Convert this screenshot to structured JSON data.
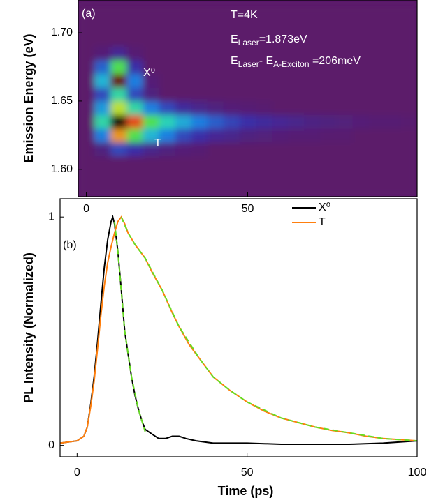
{
  "chart_data": [
    {
      "type": "heatmap",
      "ylabel": "Emission Energy (eV)",
      "xlim": [
        -2.5,
        102.5
      ],
      "xticks": [
        0,
        50
      ],
      "ylim": [
        1.58,
        1.724
      ],
      "yticks": [
        {
          "value": 1.6,
          "label": "1.60"
        },
        {
          "value": 1.65,
          "label": "1.65"
        },
        {
          "value": 1.7,
          "label": "1.70"
        }
      ],
      "x": [
        0,
        5,
        10,
        15,
        20,
        25,
        30,
        35,
        40,
        45,
        50,
        55,
        60,
        65,
        70,
        75,
        80,
        85,
        90,
        95,
        100
      ],
      "y": [
        1.585,
        1.595,
        1.605,
        1.615,
        1.625,
        1.635,
        1.645,
        1.655,
        1.665,
        1.675,
        1.685,
        1.695,
        1.705,
        1.715
      ],
      "z": [
        [
          0,
          0,
          0,
          0,
          0,
          0,
          0,
          0,
          0,
          0,
          0,
          0,
          0,
          0,
          0,
          0,
          0,
          0,
          0,
          0,
          0
        ],
        [
          0,
          0,
          0,
          0,
          0,
          0,
          0,
          0,
          0,
          0,
          0,
          0,
          0,
          0,
          0,
          0,
          0,
          0,
          0,
          0,
          0
        ],
        [
          0,
          0,
          0,
          0,
          0,
          0,
          0,
          0,
          0,
          0,
          0,
          0,
          0,
          0,
          0,
          0,
          0,
          0,
          0,
          0,
          0
        ],
        [
          0,
          0.05,
          0.2,
          0.15,
          0.08,
          0.05,
          0.03,
          0.02,
          0,
          0,
          0,
          0,
          0,
          0,
          0,
          0,
          0,
          0,
          0,
          0,
          0
        ],
        [
          0,
          0.3,
          0.8,
          0.6,
          0.4,
          0.3,
          0.2,
          0.15,
          0.1,
          0.08,
          0.05,
          0.04,
          0.03,
          0.02,
          0.02,
          0.01,
          0.01,
          0,
          0,
          0,
          0
        ],
        [
          0,
          0.5,
          1,
          0.85,
          0.6,
          0.48,
          0.38,
          0.3,
          0.24,
          0.19,
          0.15,
          0.12,
          0.1,
          0.08,
          0.06,
          0.05,
          0.04,
          0.03,
          0.02,
          0.02,
          0.01
        ],
        [
          0,
          0.35,
          0.7,
          0.5,
          0.3,
          0.2,
          0.12,
          0.08,
          0.05,
          0.03,
          0.02,
          0.01,
          0,
          0,
          0,
          0,
          0,
          0,
          0,
          0,
          0
        ],
        [
          0,
          0.2,
          0.5,
          0.2,
          0.05,
          0,
          0,
          0,
          0,
          0,
          0,
          0,
          0,
          0,
          0,
          0,
          0,
          0,
          0,
          0,
          0
        ],
        [
          0,
          0.4,
          0.95,
          0.3,
          0.03,
          0,
          0,
          0,
          0,
          0,
          0,
          0,
          0,
          0,
          0,
          0,
          0,
          0,
          0,
          0,
          0
        ],
        [
          0,
          0.25,
          0.6,
          0.15,
          0,
          0,
          0,
          0,
          0,
          0,
          0,
          0,
          0,
          0,
          0,
          0,
          0,
          0,
          0,
          0,
          0
        ],
        [
          0,
          0.03,
          0.1,
          0.02,
          0,
          0,
          0,
          0,
          0,
          0,
          0,
          0,
          0,
          0,
          0,
          0,
          0,
          0,
          0,
          0,
          0
        ],
        [
          0,
          0,
          0,
          0,
          0,
          0,
          0,
          0,
          0,
          0,
          0,
          0,
          0,
          0,
          0,
          0,
          0,
          0,
          0,
          0,
          0
        ],
        [
          0,
          0,
          0,
          0,
          0,
          0,
          0,
          0,
          0,
          0,
          0,
          0,
          0,
          0,
          0,
          0,
          0,
          0,
          0,
          0,
          0
        ],
        [
          0,
          0,
          0,
          0,
          0,
          0,
          0,
          0,
          0,
          0,
          0,
          0,
          0,
          0,
          0,
          0,
          0,
          0,
          0,
          0,
          0
        ]
      ],
      "annotations": {
        "panel": "(a)",
        "temperature": "T=4K",
        "laser": [
          "E",
          "Laser",
          "=1.873eV"
        ],
        "detuning": [
          "E",
          "Laser",
          "- E",
          "A-Exciton",
          " =206meV"
        ],
        "exciton": "X⁰",
        "trion": "T"
      }
    },
    {
      "type": "line",
      "xlabel": "Time (ps)",
      "ylabel": "PL Intensity (Normalized)",
      "xlim": [
        -5,
        100
      ],
      "xticks": [
        0,
        50,
        100
      ],
      "ylim": [
        -0.05,
        1.08
      ],
      "yticks": [
        0,
        1
      ],
      "legend": "top-right",
      "annotations": {
        "panel": "(b)"
      },
      "series": [
        {
          "name": "X⁰",
          "color": "#000000",
          "x": [
            -5,
            0,
            2,
            3,
            4,
            5,
            6,
            7,
            8,
            9,
            10,
            10.5,
            11,
            12,
            13,
            14,
            15,
            16,
            17,
            18,
            19,
            20,
            22,
            24,
            26,
            28,
            30,
            32,
            35,
            40,
            50,
            60,
            70,
            80,
            90,
            100
          ],
          "values": [
            0.01,
            0.02,
            0.04,
            0.08,
            0.18,
            0.3,
            0.45,
            0.62,
            0.78,
            0.9,
            0.98,
            1,
            0.97,
            0.85,
            0.68,
            0.5,
            0.4,
            0.3,
            0.22,
            0.16,
            0.11,
            0.07,
            0.05,
            0.03,
            0.03,
            0.04,
            0.04,
            0.03,
            0.02,
            0.01,
            0.01,
            0.005,
            0.005,
            0.005,
            0.01,
            0.02
          ]
        },
        {
          "name": "T",
          "color": "#ff7f0e",
          "x": [
            -5,
            0,
            2,
            3,
            4,
            5,
            6,
            7,
            8,
            9,
            10,
            11,
            12,
            13,
            14,
            15,
            17,
            20,
            22,
            25,
            28,
            30,
            33,
            36,
            40,
            45,
            50,
            55,
            60,
            65,
            70,
            75,
            80,
            85,
            90,
            95,
            100
          ],
          "values": [
            0.01,
            0.02,
            0.04,
            0.08,
            0.17,
            0.28,
            0.42,
            0.57,
            0.7,
            0.8,
            0.87,
            0.93,
            0.98,
            1,
            0.97,
            0.93,
            0.88,
            0.82,
            0.76,
            0.68,
            0.58,
            0.52,
            0.44,
            0.38,
            0.3,
            0.24,
            0.19,
            0.15,
            0.12,
            0.1,
            0.08,
            0.065,
            0.055,
            0.04,
            0.03,
            0.025,
            0.02
          ]
        }
      ],
      "fits": [
        {
          "color": "#66dd22",
          "x": [
            11,
            12,
            14,
            16,
            18,
            20
          ],
          "values": [
            0.98,
            0.85,
            0.5,
            0.3,
            0.16,
            0.06
          ]
        },
        {
          "color": "#66dd22",
          "x": [
            13,
            15,
            17,
            20,
            25,
            30,
            36,
            40,
            45,
            50,
            60,
            70,
            80,
            90,
            100
          ],
          "values": [
            1,
            0.93,
            0.88,
            0.82,
            0.68,
            0.52,
            0.38,
            0.3,
            0.24,
            0.19,
            0.12,
            0.08,
            0.055,
            0.03,
            0.02
          ]
        }
      ]
    }
  ]
}
